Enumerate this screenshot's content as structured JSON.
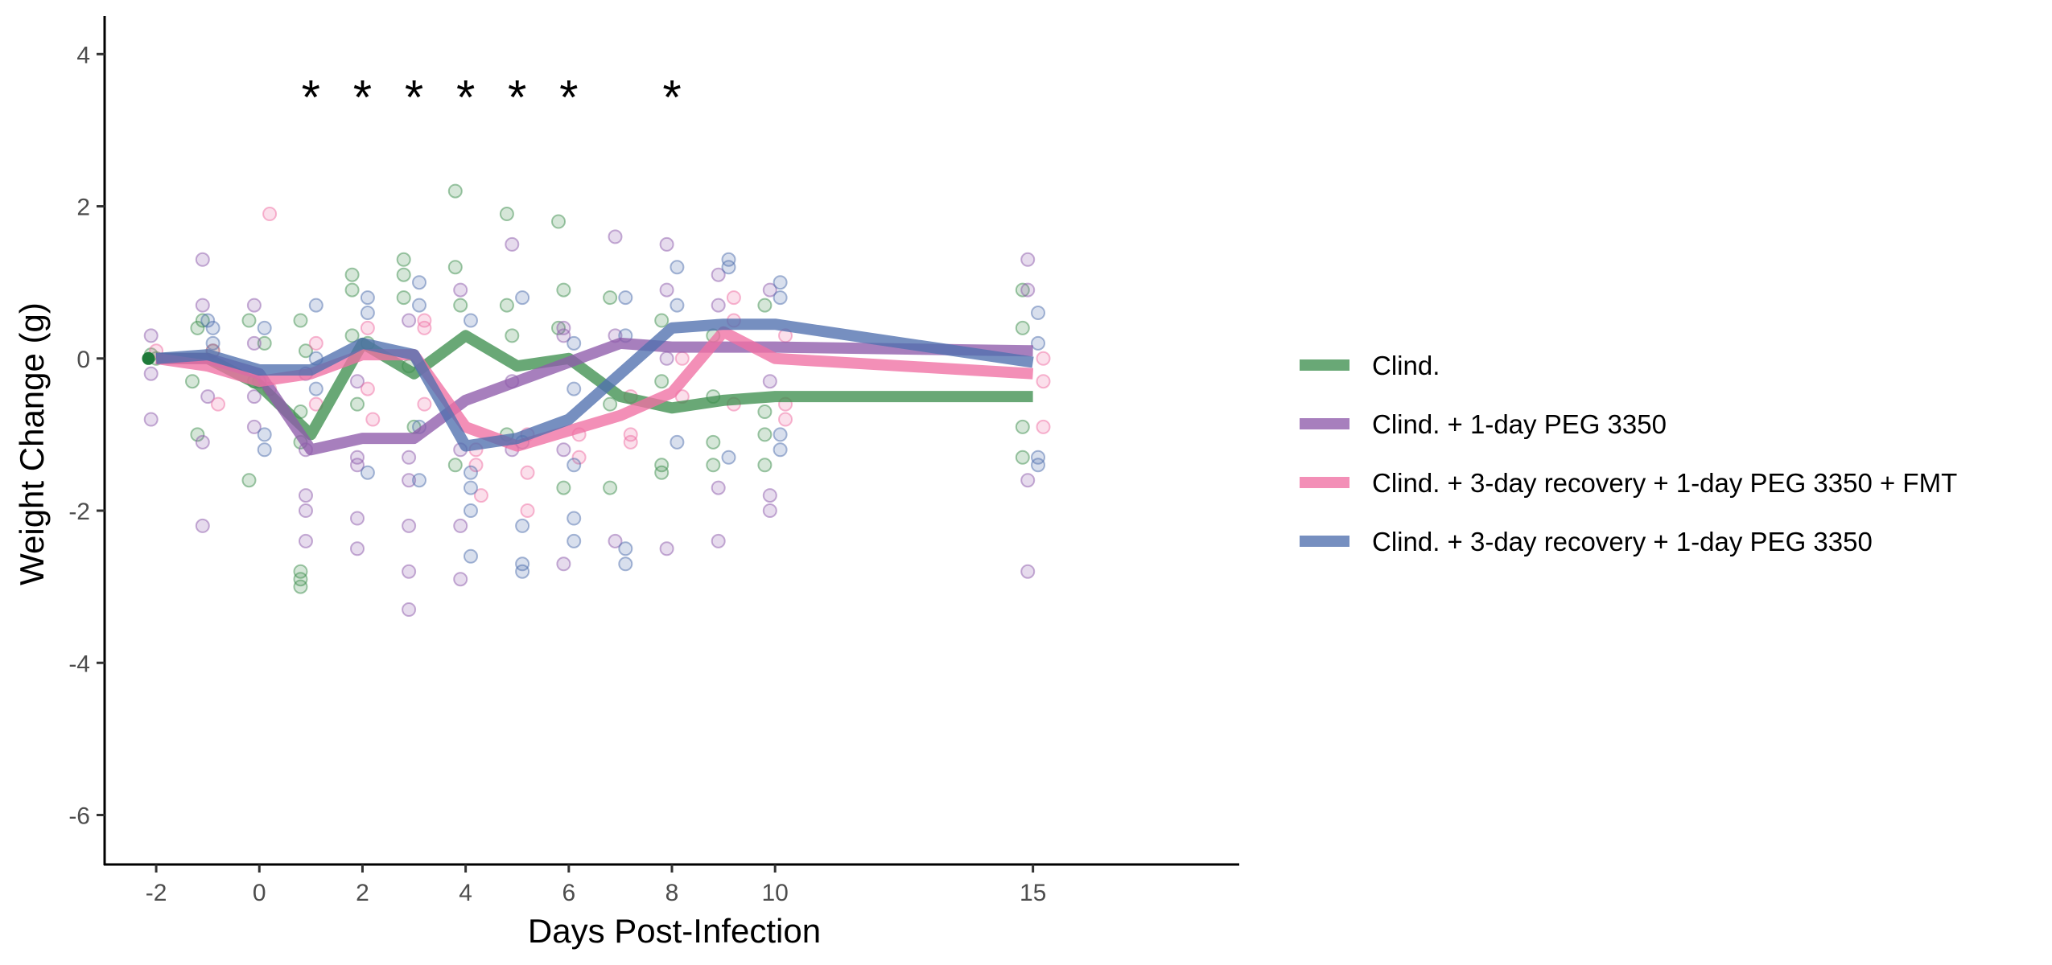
{
  "chart_data": {
    "type": "line",
    "xlabel": "Days Post-Infection",
    "ylabel": "Weight Change (g)",
    "xlim": [
      -3,
      19
    ],
    "ylim": [
      -6.65,
      4.5
    ],
    "x_ticks": [
      -2,
      0,
      2,
      4,
      6,
      8,
      10,
      15
    ],
    "y_ticks": [
      -6,
      -4,
      -2,
      0,
      2,
      4
    ],
    "grid": false,
    "legend_position": "right",
    "significance_marks": {
      "symbol": "*",
      "y": 3.45,
      "days": [
        1,
        2,
        3,
        4,
        5,
        6,
        8
      ]
    },
    "series": [
      {
        "name": "Clind.",
        "color": "#3f8f4f",
        "x": [
          -2,
          -1,
          0,
          1,
          2,
          3,
          4,
          5,
          6,
          7,
          8,
          9,
          10,
          15
        ],
        "y": [
          0,
          0,
          -0.35,
          -1.0,
          0.2,
          -0.2,
          0.3,
          -0.1,
          0.0,
          -0.5,
          -0.65,
          -0.55,
          -0.5,
          -0.5
        ],
        "points": [
          [
            -2,
            0
          ],
          [
            -2.1,
            0.05
          ],
          [
            -1.2,
            0.4
          ],
          [
            -1.3,
            -0.3
          ],
          [
            -1.1,
            0.5
          ],
          [
            -1.2,
            -1.0
          ],
          [
            -0.9,
            0.1
          ],
          [
            -0.2,
            0.5
          ],
          [
            -0.1,
            -0.3
          ],
          [
            -0.2,
            -1.6
          ],
          [
            0.1,
            0.2
          ],
          [
            0.8,
            0.5
          ],
          [
            0.9,
            0.1
          ],
          [
            0.8,
            -0.7
          ],
          [
            0.8,
            -1.1
          ],
          [
            0.8,
            -2.8
          ],
          [
            0.8,
            -2.9
          ],
          [
            0.8,
            -3.0
          ],
          [
            1.8,
            1.1
          ],
          [
            1.8,
            0.9
          ],
          [
            1.8,
            0.3
          ],
          [
            1.9,
            -0.6
          ],
          [
            2.1,
            0.2
          ],
          [
            2.8,
            1.3
          ],
          [
            2.8,
            1.1
          ],
          [
            2.8,
            0.8
          ],
          [
            2.9,
            -0.1
          ],
          [
            3.0,
            -0.9
          ],
          [
            3.8,
            2.2
          ],
          [
            3.8,
            1.2
          ],
          [
            3.9,
            0.7
          ],
          [
            3.8,
            -1.4
          ],
          [
            4.8,
            1.9
          ],
          [
            4.8,
            0.7
          ],
          [
            4.9,
            0.3
          ],
          [
            4.8,
            -1.0
          ],
          [
            5.8,
            1.8
          ],
          [
            5.9,
            0.9
          ],
          [
            5.8,
            0.4
          ],
          [
            5.9,
            -1.7
          ],
          [
            6.8,
            0.8
          ],
          [
            6.8,
            -0.6
          ],
          [
            6.8,
            -1.7
          ],
          [
            7.8,
            0.5
          ],
          [
            7.8,
            -0.3
          ],
          [
            7.8,
            -1.4
          ],
          [
            7.8,
            -1.5
          ],
          [
            8.8,
            0.3
          ],
          [
            8.8,
            -0.5
          ],
          [
            8.8,
            -1.1
          ],
          [
            8.8,
            -1.4
          ],
          [
            9.8,
            0.7
          ],
          [
            9.8,
            -0.7
          ],
          [
            9.8,
            -1.0
          ],
          [
            9.8,
            -1.4
          ],
          [
            14.8,
            0.9
          ],
          [
            14.8,
            0.4
          ],
          [
            14.8,
            -0.9
          ],
          [
            14.8,
            -1.3
          ]
        ]
      },
      {
        "name": "Clind. + 1-day PEG 3350",
        "color": "#8e5bab",
        "x": [
          -2,
          -1,
          0,
          1,
          2,
          3,
          4,
          5,
          6,
          7,
          8,
          9,
          10,
          15
        ],
        "y": [
          0,
          0,
          -0.2,
          -1.2,
          -1.05,
          -1.05,
          -0.55,
          -0.3,
          -0.05,
          0.2,
          0.15,
          0.15,
          0.15,
          0.1
        ],
        "points": [
          [
            -2.1,
            0.3
          ],
          [
            -2.1,
            -0.2
          ],
          [
            -2.1,
            -0.8
          ],
          [
            -1.1,
            1.3
          ],
          [
            -1.1,
            0.7
          ],
          [
            -1.0,
            -0.5
          ],
          [
            -1.1,
            -1.1
          ],
          [
            -1.1,
            -2.2
          ],
          [
            -0.1,
            0.7
          ],
          [
            -0.1,
            0.2
          ],
          [
            -0.1,
            -0.5
          ],
          [
            -0.1,
            -0.9
          ],
          [
            0.9,
            -0.2
          ],
          [
            0.9,
            -1.2
          ],
          [
            0.9,
            -1.8
          ],
          [
            0.9,
            -2.0
          ],
          [
            0.9,
            -2.4
          ],
          [
            1.9,
            -0.3
          ],
          [
            1.9,
            -1.3
          ],
          [
            1.9,
            -1.4
          ],
          [
            1.9,
            -2.1
          ],
          [
            1.9,
            -2.5
          ],
          [
            2.9,
            0.5
          ],
          [
            2.9,
            -1.3
          ],
          [
            2.9,
            -1.6
          ],
          [
            2.9,
            -2.2
          ],
          [
            2.9,
            -2.8
          ],
          [
            2.9,
            -3.3
          ],
          [
            3.9,
            0.9
          ],
          [
            3.9,
            -1.2
          ],
          [
            3.9,
            -2.2
          ],
          [
            3.9,
            -2.9
          ],
          [
            4.9,
            1.5
          ],
          [
            4.9,
            -0.3
          ],
          [
            4.9,
            -1.2
          ],
          [
            5.9,
            0.4
          ],
          [
            5.9,
            0.3
          ],
          [
            5.9,
            -1.2
          ],
          [
            5.9,
            -2.7
          ],
          [
            6.9,
            1.6
          ],
          [
            6.9,
            0.3
          ],
          [
            6.9,
            -2.4
          ],
          [
            7.9,
            1.5
          ],
          [
            7.9,
            0.9
          ],
          [
            7.9,
            0.0
          ],
          [
            7.9,
            -2.5
          ],
          [
            8.9,
            1.1
          ],
          [
            8.9,
            0.7
          ],
          [
            8.9,
            -1.7
          ],
          [
            8.9,
            -2.4
          ],
          [
            9.9,
            0.9
          ],
          [
            9.9,
            -0.3
          ],
          [
            9.9,
            -1.8
          ],
          [
            9.9,
            -2.0
          ],
          [
            14.9,
            1.3
          ],
          [
            14.9,
            0.9
          ],
          [
            14.9,
            -1.6
          ],
          [
            14.9,
            -2.8
          ]
        ]
      },
      {
        "name": "Clind. + 3-day recovery + 1-day PEG 3350 + FMT",
        "color": "#ef6fa3",
        "x": [
          -2,
          -1,
          0,
          1,
          2,
          3,
          4,
          5,
          6,
          7,
          8,
          9,
          10,
          15
        ],
        "y": [
          0,
          -0.1,
          -0.3,
          -0.2,
          0.05,
          0.05,
          -0.9,
          -1.15,
          -0.95,
          -0.75,
          -0.45,
          0.35,
          0.0,
          -0.2
        ],
        "points": [
          [
            -2.0,
            0.1
          ],
          [
            -0.9,
            0.1
          ],
          [
            -0.8,
            -0.6
          ],
          [
            0.2,
            1.9
          ],
          [
            0.2,
            -0.4
          ],
          [
            1.1,
            0.2
          ],
          [
            1.1,
            -0.6
          ],
          [
            2.1,
            0.4
          ],
          [
            2.1,
            -0.4
          ],
          [
            2.2,
            -0.8
          ],
          [
            3.2,
            0.5
          ],
          [
            3.2,
            0.4
          ],
          [
            3.2,
            -0.6
          ],
          [
            4.2,
            -1.2
          ],
          [
            4.2,
            -1.4
          ],
          [
            4.3,
            -1.8
          ],
          [
            5.2,
            -1.0
          ],
          [
            5.2,
            -1.5
          ],
          [
            5.2,
            -2.0
          ],
          [
            6.2,
            -1.0
          ],
          [
            6.2,
            -1.3
          ],
          [
            7.2,
            -0.5
          ],
          [
            7.2,
            -1.0
          ],
          [
            7.2,
            -1.1
          ],
          [
            8.2,
            0.0
          ],
          [
            8.2,
            -0.5
          ],
          [
            9.2,
            0.8
          ],
          [
            9.2,
            0.5
          ],
          [
            9.2,
            -0.6
          ],
          [
            10.2,
            0.3
          ],
          [
            10.2,
            -0.6
          ],
          [
            10.2,
            -0.8
          ],
          [
            15.2,
            0.0
          ],
          [
            15.2,
            -0.3
          ],
          [
            15.2,
            -0.9
          ]
        ]
      },
      {
        "name": "Clind. + 3-day recovery + 1-day PEG 3350",
        "color": "#4f6fae",
        "x": [
          -2,
          -1,
          0,
          1,
          2,
          3,
          4,
          5,
          6,
          7,
          8,
          9,
          10,
          15
        ],
        "y": [
          0,
          0.05,
          -0.15,
          -0.15,
          0.2,
          0.05,
          -1.15,
          -1.05,
          -0.8,
          -0.2,
          0.4,
          0.45,
          0.45,
          -0.05
        ],
        "points": [
          [
            -1.0,
            0.5
          ],
          [
            -0.9,
            0.4
          ],
          [
            -0.9,
            0.2
          ],
          [
            0.1,
            0.4
          ],
          [
            0.0,
            -0.3
          ],
          [
            0.1,
            -1.0
          ],
          [
            0.1,
            -1.2
          ],
          [
            1.1,
            0.7
          ],
          [
            1.1,
            0.0
          ],
          [
            1.1,
            -0.4
          ],
          [
            2.1,
            0.8
          ],
          [
            2.1,
            0.6
          ],
          [
            2.1,
            -1.5
          ],
          [
            3.1,
            1.0
          ],
          [
            3.1,
            0.7
          ],
          [
            3.1,
            -0.9
          ],
          [
            3.1,
            -1.6
          ],
          [
            4.1,
            0.5
          ],
          [
            4.1,
            -1.5
          ],
          [
            4.1,
            -1.7
          ],
          [
            4.1,
            -2.0
          ],
          [
            4.1,
            -2.6
          ],
          [
            5.1,
            0.8
          ],
          [
            5.1,
            -1.1
          ],
          [
            5.1,
            -2.2
          ],
          [
            5.1,
            -2.7
          ],
          [
            5.1,
            -2.8
          ],
          [
            6.1,
            0.2
          ],
          [
            6.1,
            -0.4
          ],
          [
            6.1,
            -1.4
          ],
          [
            6.1,
            -2.1
          ],
          [
            6.1,
            -2.4
          ],
          [
            7.1,
            0.8
          ],
          [
            7.1,
            0.3
          ],
          [
            7.1,
            -2.5
          ],
          [
            7.1,
            -2.7
          ],
          [
            8.1,
            1.2
          ],
          [
            8.1,
            0.7
          ],
          [
            8.1,
            -1.1
          ],
          [
            9.1,
            1.3
          ],
          [
            9.1,
            1.2
          ],
          [
            9.1,
            -1.3
          ],
          [
            10.1,
            1.0
          ],
          [
            10.1,
            0.8
          ],
          [
            10.1,
            -1.0
          ],
          [
            10.1,
            -1.2
          ],
          [
            15.1,
            0.6
          ],
          [
            15.1,
            0.2
          ],
          [
            15.1,
            -1.3
          ],
          [
            15.1,
            -1.4
          ]
        ]
      }
    ]
  }
}
